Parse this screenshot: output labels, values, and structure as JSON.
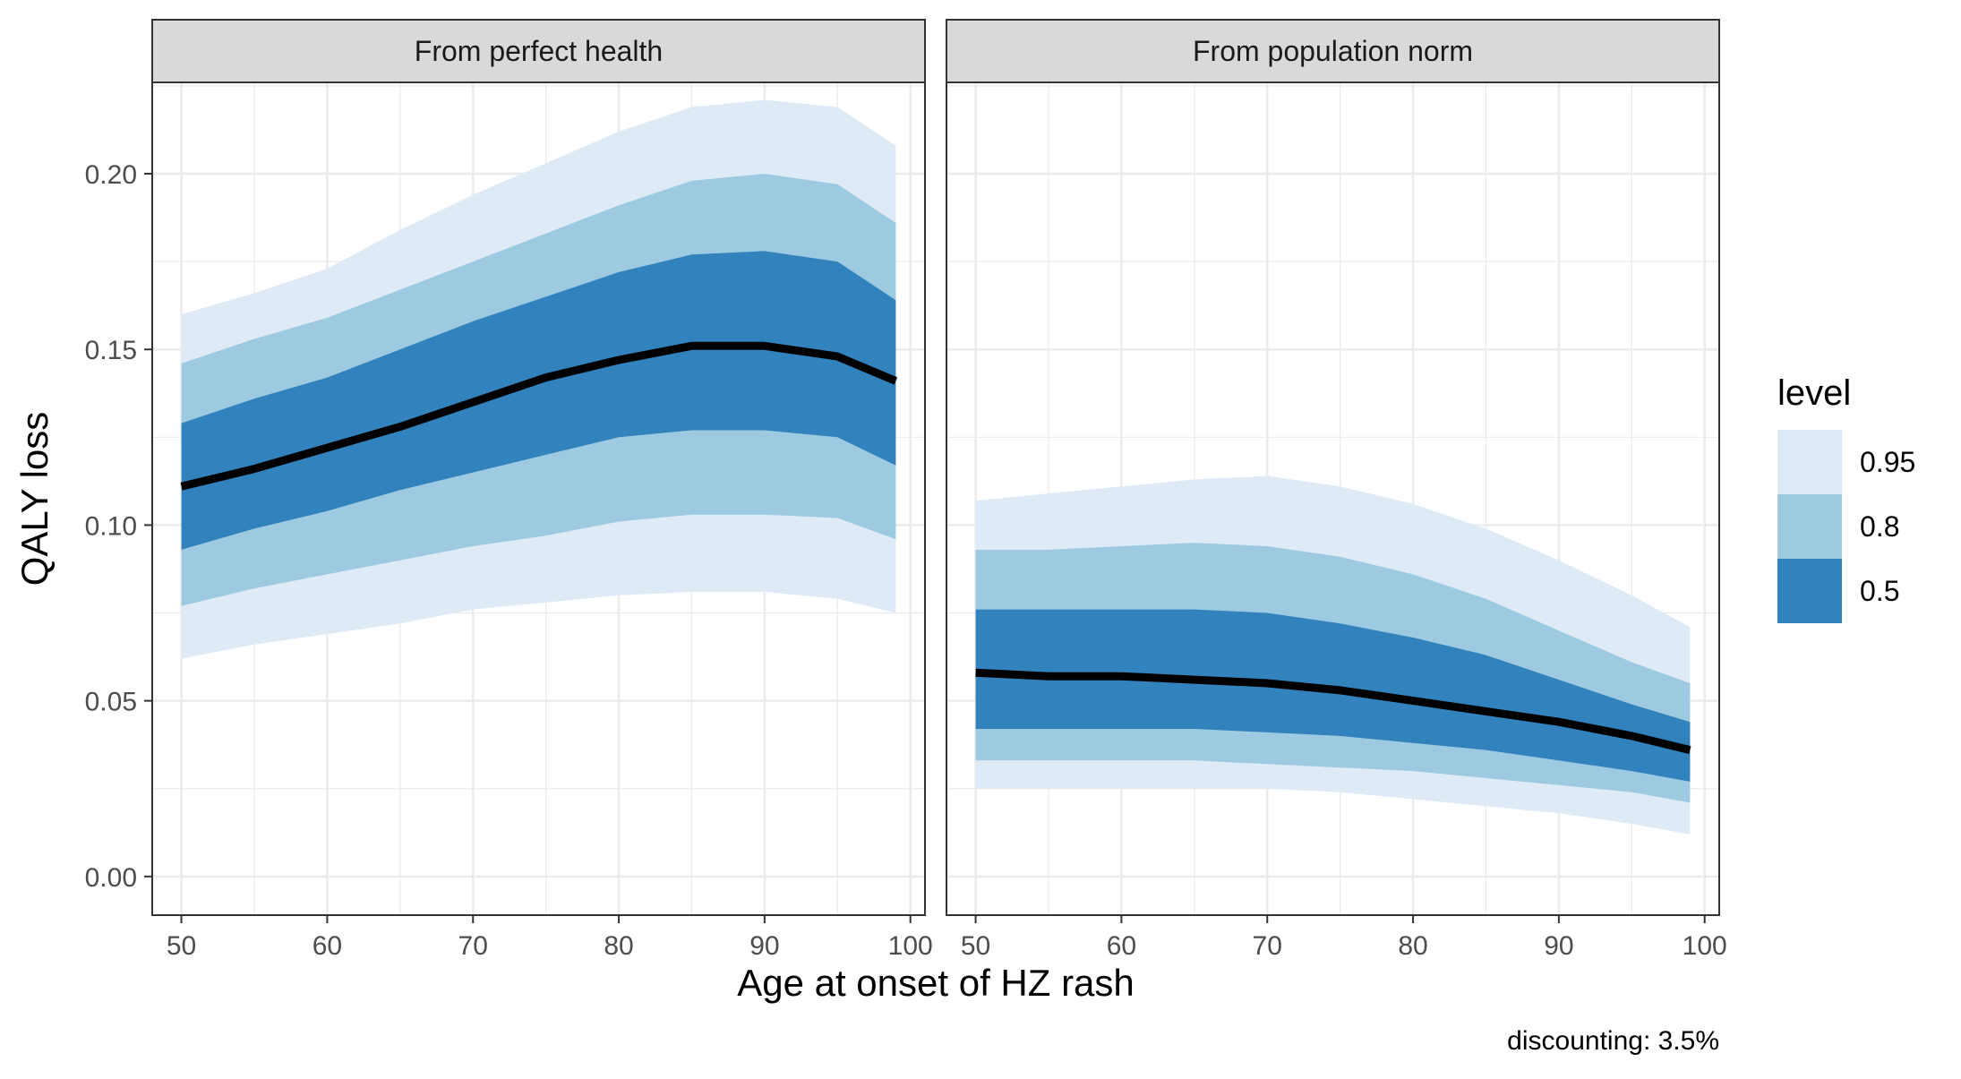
{
  "chart_data": {
    "type": "area",
    "facets": [
      "From perfect health",
      "From population norm"
    ],
    "xlabel": "Age at onset of HZ rash",
    "ylabel": "QALY loss",
    "xlim": [
      48,
      101
    ],
    "ylim": [
      -0.011,
      0.226
    ],
    "x_ticks": [
      50,
      60,
      70,
      80,
      90,
      100
    ],
    "y_ticks": [
      0.0,
      0.05,
      0.1,
      0.15,
      0.2
    ],
    "y_tick_labels": [
      "0.00",
      "0.05",
      "0.10",
      "0.15",
      "0.20"
    ],
    "grid": true,
    "legend": {
      "title": "level",
      "position": "right",
      "items": [
        {
          "label": "0.95",
          "color": "#deebf7"
        },
        {
          "label": "0.8",
          "color": "#9ecae1"
        },
        {
          "label": "0.5",
          "color": "#3182bd"
        }
      ]
    },
    "caption": "discounting: 3.5%",
    "colors": {
      "band_95": "#deebf7",
      "band_80": "#9ecae1",
      "band_50": "#3182bd",
      "median": "#000000",
      "strip": "#d9d9d9",
      "grid": "#ebebeb"
    },
    "panels": [
      {
        "title": "From perfect health",
        "x": [
          50,
          55,
          60,
          65,
          70,
          75,
          80,
          85,
          90,
          95,
          99
        ],
        "median": [
          0.111,
          0.116,
          0.122,
          0.128,
          0.135,
          0.142,
          0.147,
          0.151,
          0.151,
          0.148,
          0.141
        ],
        "band_95": {
          "lower": [
            0.062,
            0.066,
            0.069,
            0.072,
            0.076,
            0.078,
            0.08,
            0.081,
            0.081,
            0.079,
            0.075
          ],
          "upper": [
            0.16,
            0.166,
            0.173,
            0.184,
            0.194,
            0.203,
            0.212,
            0.219,
            0.221,
            0.219,
            0.208
          ]
        },
        "band_80": {
          "lower": [
            0.077,
            0.082,
            0.086,
            0.09,
            0.094,
            0.097,
            0.101,
            0.103,
            0.103,
            0.102,
            0.096
          ],
          "upper": [
            0.146,
            0.153,
            0.159,
            0.167,
            0.175,
            0.183,
            0.191,
            0.198,
            0.2,
            0.197,
            0.186
          ]
        },
        "band_50": {
          "lower": [
            0.093,
            0.099,
            0.104,
            0.11,
            0.115,
            0.12,
            0.125,
            0.127,
            0.127,
            0.125,
            0.117
          ],
          "upper": [
            0.129,
            0.136,
            0.142,
            0.15,
            0.158,
            0.165,
            0.172,
            0.177,
            0.178,
            0.175,
            0.164
          ]
        }
      },
      {
        "title": "From population norm",
        "x": [
          50,
          55,
          60,
          65,
          70,
          75,
          80,
          85,
          90,
          95,
          99
        ],
        "median": [
          0.058,
          0.057,
          0.057,
          0.056,
          0.055,
          0.053,
          0.05,
          0.047,
          0.044,
          0.04,
          0.036
        ],
        "band_95": {
          "lower": [
            0.025,
            0.025,
            0.025,
            0.025,
            0.025,
            0.024,
            0.022,
            0.02,
            0.018,
            0.015,
            0.012
          ],
          "upper": [
            0.107,
            0.109,
            0.111,
            0.113,
            0.114,
            0.111,
            0.106,
            0.099,
            0.09,
            0.08,
            0.071
          ]
        },
        "band_80": {
          "lower": [
            0.033,
            0.033,
            0.033,
            0.033,
            0.032,
            0.031,
            0.03,
            0.028,
            0.026,
            0.024,
            0.021
          ],
          "upper": [
            0.093,
            0.093,
            0.094,
            0.095,
            0.094,
            0.091,
            0.086,
            0.079,
            0.07,
            0.061,
            0.055
          ]
        },
        "band_50": {
          "lower": [
            0.042,
            0.042,
            0.042,
            0.042,
            0.041,
            0.04,
            0.038,
            0.036,
            0.033,
            0.03,
            0.027
          ],
          "upper": [
            0.076,
            0.076,
            0.076,
            0.076,
            0.075,
            0.072,
            0.068,
            0.063,
            0.056,
            0.049,
            0.044
          ]
        }
      }
    ]
  }
}
